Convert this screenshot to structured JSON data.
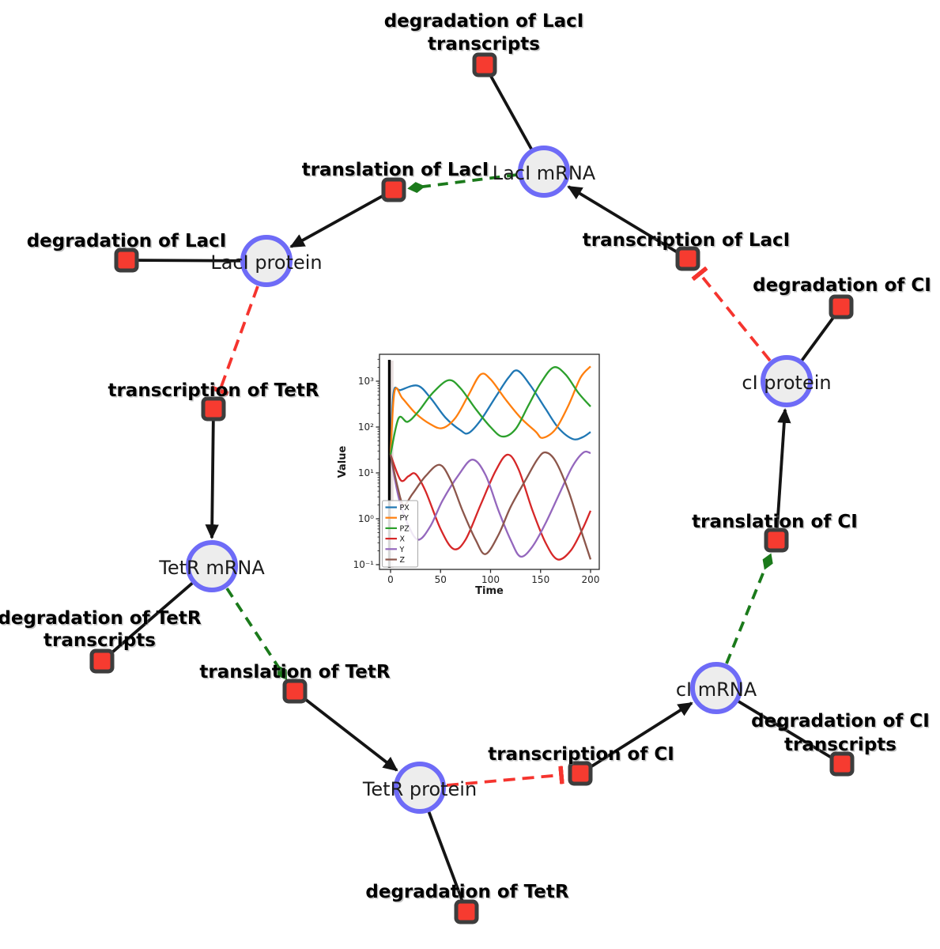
{
  "diagram": {
    "species": [
      {
        "label": "LacI mRNA"
      },
      {
        "label": "LacI protein"
      },
      {
        "label": "TetR mRNA"
      },
      {
        "label": "TetR protein"
      },
      {
        "label": "cI mRNA"
      },
      {
        "label": "cI protein"
      }
    ],
    "reactions": [
      {
        "lines": [
          "degradation of LacI",
          "transcripts"
        ]
      },
      {
        "lines": [
          "translation of LacI"
        ]
      },
      {
        "lines": [
          "degradation of LacI"
        ]
      },
      {
        "lines": [
          "transcription of TetR"
        ]
      },
      {
        "lines": [
          "degradation of TetR",
          "transcripts"
        ]
      },
      {
        "lines": [
          "translation of TetR"
        ]
      },
      {
        "lines": [
          "degradation of TetR"
        ]
      },
      {
        "lines": [
          "transcription of CI"
        ]
      },
      {
        "lines": [
          "degradation of CI",
          "transcripts"
        ]
      },
      {
        "lines": [
          "translation of CI"
        ]
      },
      {
        "lines": [
          "degradation of CI"
        ]
      },
      {
        "lines": [
          "transcription of LacI"
        ]
      }
    ],
    "edges": [
      {
        "from": "LacI mRNA",
        "to": "degradation of LacI transcripts",
        "type": "consumption"
      },
      {
        "from": "transcription of LacI",
        "to": "LacI mRNA",
        "type": "production"
      },
      {
        "from": "LacI mRNA",
        "to": "translation of LacI",
        "type": "modifier"
      },
      {
        "from": "translation of LacI",
        "to": "LacI protein",
        "type": "production"
      },
      {
        "from": "LacI protein",
        "to": "degradation of LacI",
        "type": "consumption"
      },
      {
        "from": "LacI protein",
        "to": "transcription of TetR",
        "type": "inhibition"
      },
      {
        "from": "transcription of TetR",
        "to": "TetR mRNA",
        "type": "production"
      },
      {
        "from": "TetR mRNA",
        "to": "degradation of TetR transcripts",
        "type": "consumption"
      },
      {
        "from": "TetR mRNA",
        "to": "translation of TetR",
        "type": "modifier"
      },
      {
        "from": "translation of TetR",
        "to": "TetR protein",
        "type": "production"
      },
      {
        "from": "TetR protein",
        "to": "degradation of TetR",
        "type": "consumption"
      },
      {
        "from": "TetR protein",
        "to": "transcription of CI",
        "type": "inhibition"
      },
      {
        "from": "transcription of CI",
        "to": "cI mRNA",
        "type": "production"
      },
      {
        "from": "cI mRNA",
        "to": "degradation of CI transcripts",
        "type": "consumption"
      },
      {
        "from": "cI mRNA",
        "to": "translation of CI",
        "type": "modifier"
      },
      {
        "from": "translation of CI",
        "to": "cI protein",
        "type": "production"
      },
      {
        "from": "cI protein",
        "to": "degradation of CI",
        "type": "consumption"
      },
      {
        "from": "cI protein",
        "to": "transcription of LacI",
        "type": "inhibition"
      }
    ],
    "style": {
      "circle_fill": "#ededed",
      "circle_border": "#6e6bf7",
      "square_fill": "#f63b30",
      "square_border": "#3d3d3d",
      "production_color": "#141414",
      "modifier_color": "#1b7a1b",
      "inhibition_color": "#f5342e"
    }
  },
  "chart_data": {
    "type": "line",
    "xlabel": "Time",
    "ylabel": "Value",
    "x_range": [
      0,
      200
    ],
    "y_scale": "log",
    "ylim_log10": [
      -1.1,
      3.59
    ],
    "xticks": [
      0,
      50,
      100,
      150,
      200
    ],
    "yticks": [
      {
        "exp": 3,
        "label": "10³"
      },
      {
        "exp": 2,
        "label": "10²"
      },
      {
        "exp": 1,
        "label": "10¹"
      },
      {
        "exp": 0,
        "label": "10⁰"
      },
      {
        "exp": -1,
        "label": "10⁻¹"
      }
    ],
    "grid": false,
    "legend_position": "lower left",
    "initial_vline_x": 0,
    "series": [
      {
        "name": "PX",
        "color": "#1f77b4",
        "points": [
          [
            0,
            25
          ],
          [
            3,
            560
          ],
          [
            10,
            640
          ],
          [
            27,
            800
          ],
          [
            40,
            430
          ],
          [
            55,
            160
          ],
          [
            70,
            85
          ],
          [
            78,
            74
          ],
          [
            90,
            140
          ],
          [
            105,
            450
          ],
          [
            118,
            1200
          ],
          [
            127,
            1700
          ],
          [
            140,
            800
          ],
          [
            155,
            250
          ],
          [
            168,
            95
          ],
          [
            182,
            55
          ],
          [
            192,
            60
          ],
          [
            200,
            78
          ]
        ]
      },
      {
        "name": "PY",
        "color": "#ff7f0e",
        "points": [
          [
            0,
            25
          ],
          [
            4,
            600
          ],
          [
            12,
            420
          ],
          [
            25,
            200
          ],
          [
            40,
            115
          ],
          [
            52,
            95
          ],
          [
            65,
            160
          ],
          [
            78,
            500
          ],
          [
            90,
            1400
          ],
          [
            100,
            1100
          ],
          [
            115,
            400
          ],
          [
            130,
            160
          ],
          [
            145,
            80
          ],
          [
            152,
            58
          ],
          [
            165,
            90
          ],
          [
            178,
            300
          ],
          [
            190,
            1200
          ],
          [
            200,
            2100
          ]
        ]
      },
      {
        "name": "PZ",
        "color": "#2ca02c",
        "points": [
          [
            0,
            25
          ],
          [
            8,
            155
          ],
          [
            17,
            130
          ],
          [
            28,
            220
          ],
          [
            42,
            550
          ],
          [
            58,
            1050
          ],
          [
            70,
            700
          ],
          [
            85,
            250
          ],
          [
            100,
            100
          ],
          [
            112,
            62
          ],
          [
            125,
            90
          ],
          [
            138,
            300
          ],
          [
            150,
            900
          ],
          [
            163,
            2000
          ],
          [
            175,
            1400
          ],
          [
            188,
            550
          ],
          [
            200,
            280
          ]
        ]
      },
      {
        "name": "X",
        "color": "#d62728",
        "points": [
          [
            0,
            25
          ],
          [
            10,
            7
          ],
          [
            18,
            8.5
          ],
          [
            25,
            9.5
          ],
          [
            35,
            4
          ],
          [
            50,
            0.6
          ],
          [
            63,
            0.22
          ],
          [
            75,
            0.35
          ],
          [
            90,
            2
          ],
          [
            105,
            11
          ],
          [
            117,
            25
          ],
          [
            128,
            12
          ],
          [
            142,
            1.5
          ],
          [
            155,
            0.3
          ],
          [
            167,
            0.13
          ],
          [
            180,
            0.2
          ],
          [
            192,
            0.6
          ],
          [
            200,
            1.5
          ]
        ]
      },
      {
        "name": "Y",
        "color": "#9467bd",
        "points": [
          [
            0,
            25
          ],
          [
            8,
            3
          ],
          [
            18,
            0.7
          ],
          [
            28,
            0.35
          ],
          [
            40,
            0.7
          ],
          [
            52,
            2.5
          ],
          [
            68,
            9
          ],
          [
            82,
            19.5
          ],
          [
            95,
            9
          ],
          [
            108,
            1.5
          ],
          [
            120,
            0.35
          ],
          [
            130,
            0.15
          ],
          [
            142,
            0.25
          ],
          [
            155,
            0.8
          ],
          [
            170,
            4
          ],
          [
            182,
            14
          ],
          [
            193,
            28
          ],
          [
            200,
            27
          ]
        ]
      },
      {
        "name": "Z",
        "color": "#8c564b",
        "points": [
          [
            0,
            25
          ],
          [
            7,
            5
          ],
          [
            13,
            2
          ],
          [
            22,
            3.5
          ],
          [
            35,
            8.5
          ],
          [
            49,
            15
          ],
          [
            60,
            7
          ],
          [
            72,
            1.5
          ],
          [
            85,
            0.35
          ],
          [
            95,
            0.17
          ],
          [
            108,
            0.45
          ],
          [
            120,
            1.8
          ],
          [
            135,
            7
          ],
          [
            147,
            20
          ],
          [
            155,
            28
          ],
          [
            165,
            18
          ],
          [
            178,
            4
          ],
          [
            190,
            0.6
          ],
          [
            200,
            0.13
          ]
        ]
      }
    ]
  }
}
